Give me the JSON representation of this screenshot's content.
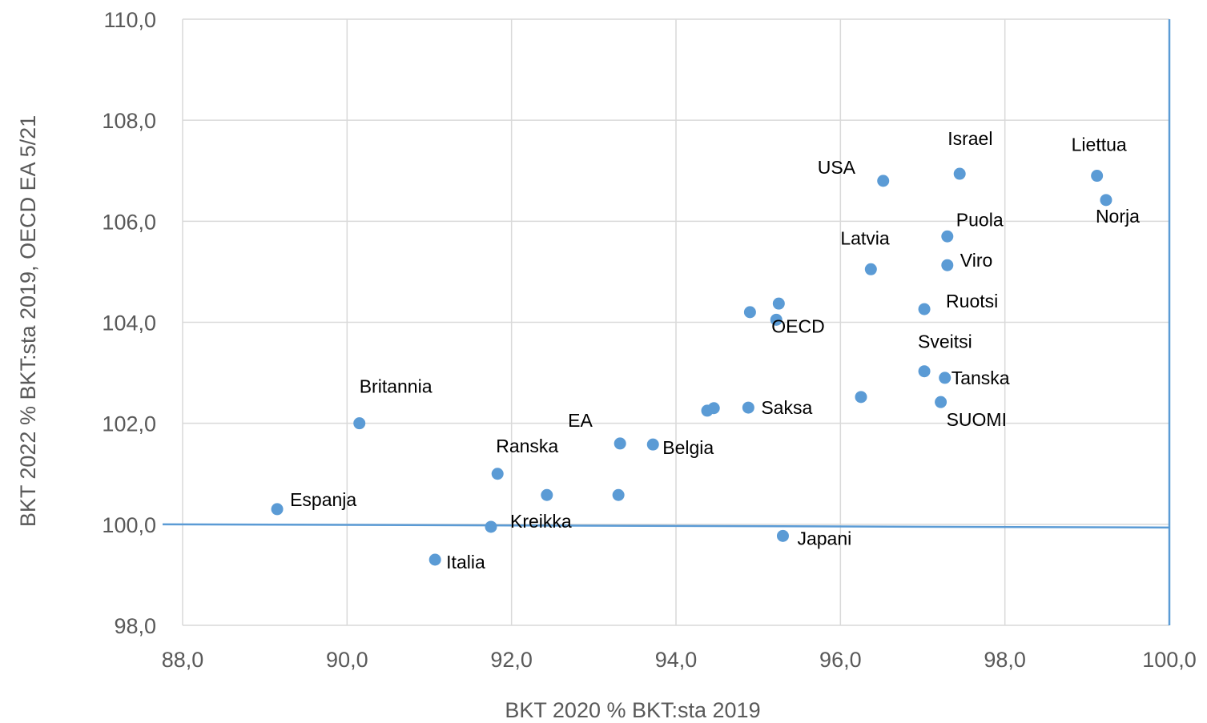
{
  "chart_data": {
    "type": "scatter",
    "title": "",
    "xlabel": "BKT 2020 % BKT:sta 2019",
    "ylabel": "BKT 2022 % BKT:sta 2019, OECD EA 5/21",
    "xlim": [
      88,
      100
    ],
    "ylim": [
      98,
      110
    ],
    "x_ticks": [
      "88,0",
      "90,0",
      "92,0",
      "94,0",
      "96,0",
      "98,0",
      "100,0"
    ],
    "y_ticks": [
      "98,0",
      "100,0",
      "102,0",
      "104,0",
      "106,0",
      "108,0",
      "110,0"
    ],
    "grid": true,
    "marker_color": "#5b9bd5",
    "reference_line_color": "#5b9bd5",
    "reference_lines": {
      "y": 100,
      "x": 100
    },
    "points": [
      {
        "label": "Espanja",
        "x": 89.15,
        "y": 100.3
      },
      {
        "label": "Britannia",
        "x": 90.15,
        "y": 102.0
      },
      {
        "label": "Italia",
        "x": 91.07,
        "y": 99.3
      },
      {
        "label": "Kreikka",
        "x": 91.75,
        "y": 99.95
      },
      {
        "label": "Ranska",
        "x": 91.83,
        "y": 101.0
      },
      {
        "label": "",
        "x": 92.43,
        "y": 100.58
      },
      {
        "label": "",
        "x": 93.3,
        "y": 100.58
      },
      {
        "label": "EA",
        "x": 93.32,
        "y": 101.6
      },
      {
        "label": "Belgia",
        "x": 93.72,
        "y": 101.58
      },
      {
        "label": "",
        "x": 94.38,
        "y": 102.25
      },
      {
        "label": "",
        "x": 94.46,
        "y": 102.3
      },
      {
        "label": "Saksa",
        "x": 94.88,
        "y": 102.31
      },
      {
        "label": "",
        "x": 94.9,
        "y": 104.2
      },
      {
        "label": "OECD",
        "x": 95.22,
        "y": 104.05
      },
      {
        "label": "",
        "x": 95.25,
        "y": 104.37
      },
      {
        "label": "Japani",
        "x": 95.3,
        "y": 99.77
      },
      {
        "label": "",
        "x": 96.25,
        "y": 102.52
      },
      {
        "label": "Latvia",
        "x": 96.37,
        "y": 105.05
      },
      {
        "label": "USA",
        "x": 96.52,
        "y": 106.8
      },
      {
        "label": "Ruotsi",
        "x": 97.02,
        "y": 104.26
      },
      {
        "label": "Sveitsi",
        "x": 97.02,
        "y": 103.03
      },
      {
        "label": "SUOMI",
        "x": 97.22,
        "y": 102.42
      },
      {
        "label": "Tanska",
        "x": 97.27,
        "y": 102.9
      },
      {
        "label": "Viro",
        "x": 97.3,
        "y": 105.13
      },
      {
        "label": "Puola",
        "x": 97.3,
        "y": 105.7
      },
      {
        "label": "Israel",
        "x": 97.45,
        "y": 106.94
      },
      {
        "label": "Liettua",
        "x": 99.12,
        "y": 106.9
      },
      {
        "label": "Norja",
        "x": 99.23,
        "y": 106.42
      }
    ]
  }
}
